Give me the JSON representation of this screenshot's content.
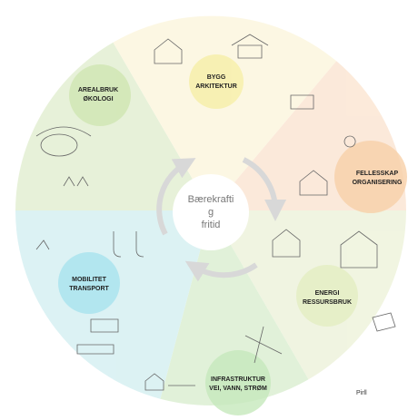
{
  "sectors": [
    {
      "label": [
        "AREALBRUK",
        "ØKOLOGI"
      ]
    },
    {
      "label": [
        "BYGG",
        "ARKITEKTUR"
      ]
    },
    {
      "label": [
        "FELLESSKAP",
        "ORGANISERING"
      ]
    },
    {
      "label": [
        "ENERGI",
        "RESSURSBRUK"
      ]
    },
    {
      "label": [
        "INFRASTRUKTUR",
        "VEI, VANN, STRØM"
      ]
    },
    {
      "label": [
        "MOBILITET",
        "TRANSPORT"
      ]
    }
  ],
  "center": {
    "lines": [
      "Bærekrafti",
      "g",
      "fritid"
    ]
  },
  "credit": "Pirll"
}
